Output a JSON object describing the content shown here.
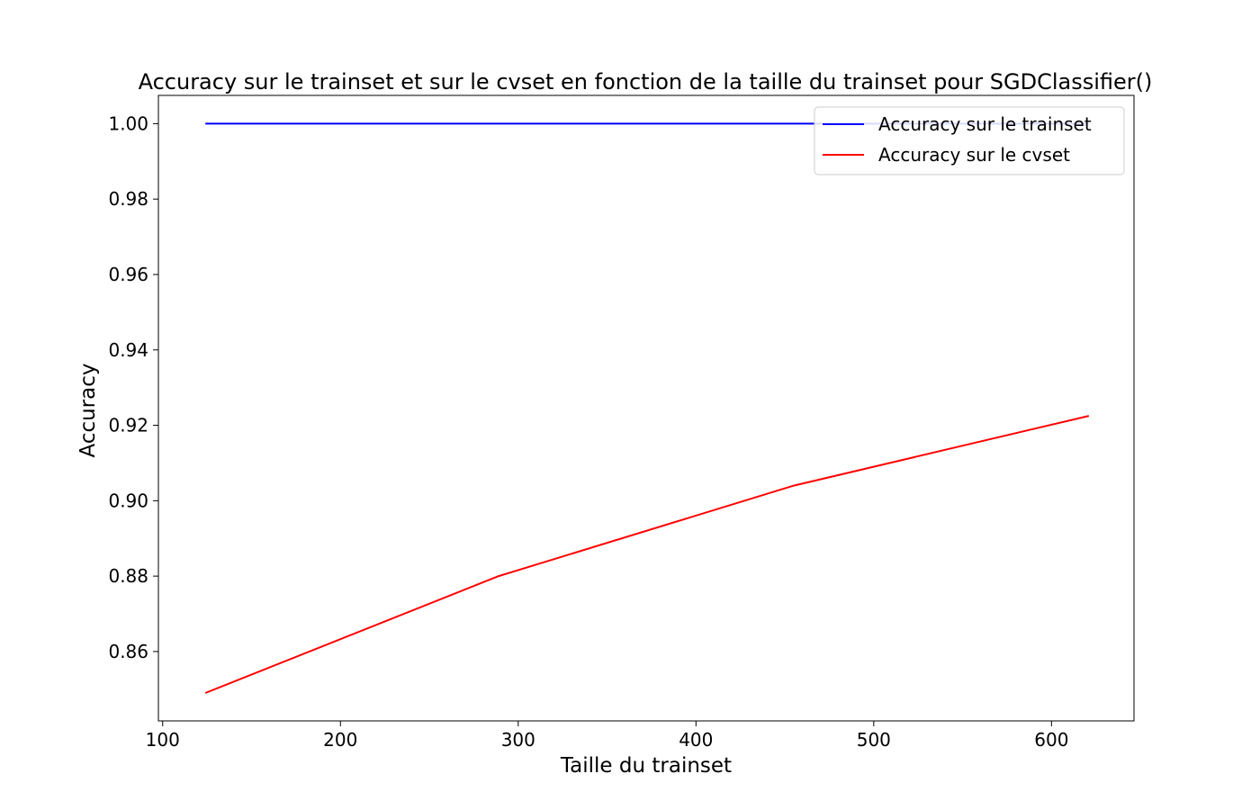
{
  "chart_data": {
    "type": "line",
    "title": "Accuracy sur le trainset et sur le cvset en fonction de la taille du trainset pour SGDClassifier()",
    "xlabel": "Taille du trainset",
    "ylabel": "Accuracy",
    "xlim": [
      97.6,
      646.4
    ],
    "ylim": [
      0.8416,
      1.0075
    ],
    "xticks": [
      100,
      200,
      300,
      400,
      500,
      600
    ],
    "xtick_labels": [
      "100",
      "200",
      "300",
      "400",
      "500",
      "600"
    ],
    "yticks": [
      0.86,
      0.88,
      0.9,
      0.92,
      0.94,
      0.96,
      0.98,
      1.0
    ],
    "ytick_labels": [
      "0.86",
      "0.88",
      "0.90",
      "0.92",
      "0.94",
      "0.96",
      "0.98",
      "1.00"
    ],
    "grid": false,
    "legend_position": "top-right",
    "series": [
      {
        "name": "Accuracy sur le trainset",
        "color": "#0000ff",
        "x": [
          124,
          289,
          455,
          621
        ],
        "y": [
          1.0,
          1.0,
          1.0,
          1.0
        ]
      },
      {
        "name": "Accuracy sur le cvset",
        "color": "#ff0000",
        "x": [
          124,
          289,
          455,
          621
        ],
        "y": [
          0.849,
          0.88,
          0.904,
          0.9225
        ]
      }
    ]
  }
}
